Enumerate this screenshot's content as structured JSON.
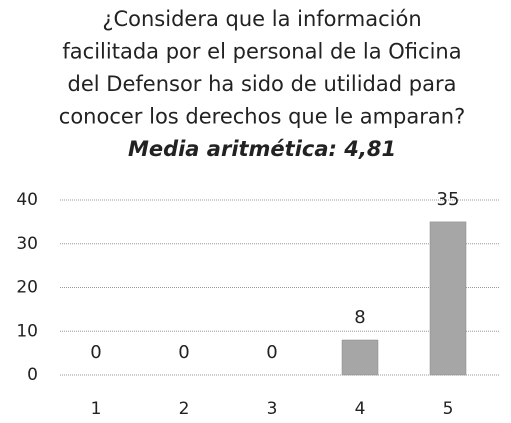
{
  "chart_data": {
    "type": "bar",
    "title": [
      "¿Considera que la información",
      "facilitada por el personal de la Oficina",
      "del Defensor ha sido de utilidad para",
      "conocer los derechos que le amparan?"
    ],
    "subtitle": "Media aritmética: 4,81",
    "categories": [
      "1",
      "2",
      "3",
      "4",
      "5"
    ],
    "values": [
      0,
      0,
      0,
      8,
      35
    ],
    "color": "#a6a6a6",
    "ylim": [
      0,
      40
    ],
    "yticks": [
      0,
      10,
      20,
      30,
      40
    ],
    "grid": true
  }
}
